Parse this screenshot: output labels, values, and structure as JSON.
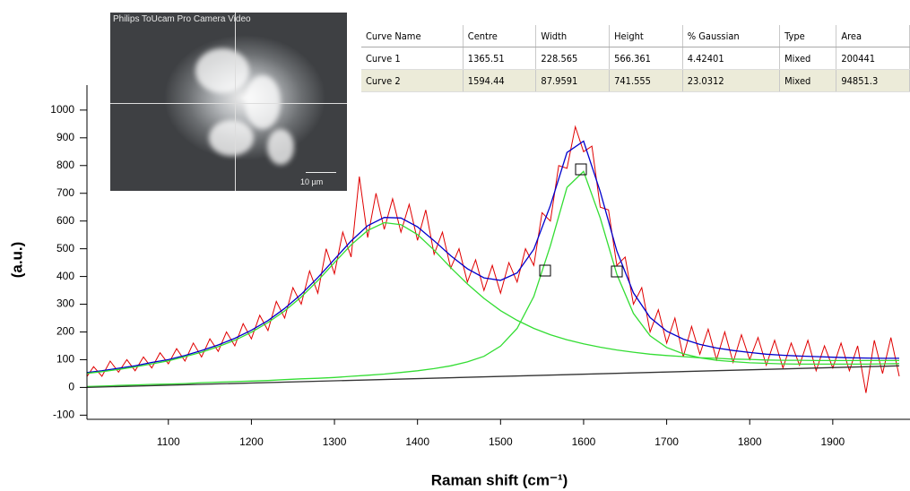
{
  "chart_data": {
    "type": "line",
    "xlabel": "Raman shift (cm⁻¹)",
    "ylabel": "(a.u.)",
    "xlim": [
      1002,
      1993
    ],
    "ylim": [
      -115,
      1090
    ],
    "xticks": [
      1100,
      1200,
      1300,
      1400,
      1500,
      1600,
      1700,
      1800,
      1900
    ],
    "yticks": [
      -100,
      0,
      100,
      200,
      300,
      400,
      500,
      600,
      700,
      800,
      900,
      1000
    ],
    "series": [
      {
        "color": "#e00000",
        "x": [
          1000,
          1010,
          1020,
          1030,
          1040,
          1050,
          1060,
          1070,
          1080,
          1090,
          1100,
          1110,
          1120,
          1130,
          1140,
          1150,
          1160,
          1170,
          1180,
          1190,
          1200,
          1210,
          1220,
          1230,
          1240,
          1250,
          1260,
          1270,
          1280,
          1290,
          1300,
          1310,
          1320,
          1330,
          1340,
          1350,
          1360,
          1370,
          1380,
          1390,
          1400,
          1410,
          1420,
          1430,
          1440,
          1450,
          1460,
          1470,
          1480,
          1490,
          1500,
          1510,
          1520,
          1530,
          1540,
          1550,
          1560,
          1570,
          1580,
          1590,
          1600,
          1610,
          1620,
          1630,
          1640,
          1650,
          1660,
          1670,
          1680,
          1690,
          1700,
          1710,
          1720,
          1730,
          1740,
          1750,
          1760,
          1770,
          1780,
          1790,
          1800,
          1810,
          1820,
          1830,
          1840,
          1850,
          1860,
          1870,
          1880,
          1890,
          1900,
          1910,
          1920,
          1930,
          1940,
          1950,
          1960,
          1970,
          1980
        ],
        "values": [
          30,
          75,
          40,
          95,
          55,
          100,
          60,
          110,
          70,
          125,
          85,
          140,
          95,
          160,
          110,
          175,
          130,
          200,
          150,
          230,
          175,
          260,
          205,
          310,
          250,
          360,
          300,
          420,
          340,
          500,
          410,
          560,
          470,
          760,
          540,
          700,
          570,
          680,
          560,
          660,
          530,
          640,
          480,
          560,
          430,
          500,
          380,
          460,
          350,
          440,
          340,
          450,
          380,
          500,
          440,
          630,
          600,
          800,
          790,
          940,
          850,
          870,
          650,
          640,
          440,
          470,
          300,
          360,
          200,
          280,
          160,
          250,
          110,
          220,
          120,
          210,
          100,
          200,
          90,
          190,
          100,
          180,
          80,
          170,
          70,
          160,
          80,
          170,
          60,
          150,
          70,
          160,
          60,
          150,
          -20,
          170,
          50,
          180,
          40
        ]
      },
      {
        "color": "#0000cc",
        "x": [
          1000,
          1020,
          1040,
          1060,
          1080,
          1100,
          1120,
          1140,
          1160,
          1180,
          1200,
          1220,
          1240,
          1260,
          1280,
          1300,
          1320,
          1340,
          1360,
          1380,
          1400,
          1420,
          1440,
          1460,
          1480,
          1500,
          1520,
          1540,
          1560,
          1580,
          1600,
          1620,
          1640,
          1660,
          1680,
          1700,
          1720,
          1740,
          1760,
          1780,
          1800,
          1820,
          1840,
          1860,
          1880,
          1900,
          1920,
          1940,
          1960,
          1980
        ],
        "values": [
          53,
          60,
          69,
          78,
          90,
          100,
          115,
          133,
          153,
          177,
          206,
          241,
          285,
          336,
          396,
          462,
          528,
          583,
          613,
          611,
          579,
          529,
          475,
          428,
          395,
          386,
          413,
          498,
          656,
          847,
          888,
          706,
          492,
          341,
          252,
          203,
          174,
          155,
          142,
          133,
          126,
          120,
          116,
          113,
          111,
          109,
          107,
          106,
          105,
          105
        ]
      },
      {
        "color": "#33dd33",
        "x": [
          1000,
          1020,
          1040,
          1060,
          1080,
          1100,
          1120,
          1140,
          1160,
          1180,
          1200,
          1220,
          1240,
          1260,
          1280,
          1300,
          1320,
          1340,
          1360,
          1380,
          1400,
          1420,
          1440,
          1460,
          1480,
          1500,
          1520,
          1540,
          1560,
          1580,
          1600,
          1620,
          1640,
          1660,
          1680,
          1700,
          1720,
          1740,
          1760,
          1780,
          1800,
          1820,
          1840,
          1860,
          1880,
          1900,
          1920,
          1940,
          1960,
          1980
        ],
        "values": [
          50,
          57,
          65,
          74,
          85,
          96,
          111,
          127,
          147,
          170,
          199,
          234,
          276,
          326,
          385,
          450,
          514,
          566,
          594,
          587,
          551,
          495,
          432,
          373,
          321,
          277,
          242,
          213,
          190,
          172,
          157,
          145,
          135,
          127,
          120,
          115,
          111,
          107,
          105,
          102,
          101,
          99,
          98,
          98,
          97,
          97,
          97,
          97,
          97,
          97
        ]
      },
      {
        "color": "#33dd33",
        "x": [
          1000,
          1020,
          1040,
          1060,
          1080,
          1100,
          1120,
          1140,
          1160,
          1180,
          1200,
          1220,
          1240,
          1260,
          1280,
          1300,
          1320,
          1340,
          1360,
          1380,
          1400,
          1420,
          1440,
          1460,
          1480,
          1500,
          1520,
          1540,
          1560,
          1580,
          1600,
          1620,
          1640,
          1660,
          1680,
          1700,
          1720,
          1740,
          1760,
          1780,
          1800,
          1820,
          1840,
          1860,
          1880,
          1900,
          1920,
          1940,
          1960,
          1980
        ],
        "values": [
          3,
          5,
          7,
          9,
          11,
          12,
          14,
          17,
          19,
          21,
          23,
          25,
          28,
          31,
          33,
          36,
          40,
          44,
          48,
          54,
          60,
          68,
          78,
          92,
          112,
          149,
          213,
          328,
          511,
          721,
          779,
          611,
          408,
          267,
          186,
          144,
          121,
          107,
          98,
          93,
          89,
          87,
          85,
          84,
          84,
          84,
          84,
          84,
          85,
          86
        ]
      },
      {
        "color": "#333333",
        "x": [
          1000,
          1980
        ],
        "values": [
          0,
          78
        ]
      }
    ]
  },
  "inset": {
    "caption": "Philips ToUcam Pro Camera Video",
    "scale": "10 µm"
  },
  "table": {
    "columns": [
      "Curve Name",
      "Centre",
      "Width",
      "Height",
      "% Gaussian",
      "Type",
      "Area"
    ],
    "rows": [
      [
        "Curve 1",
        "1365.51",
        "228.565",
        "566.361",
        "4.42401",
        "Mixed",
        "200441"
      ],
      [
        "Curve 2",
        "1594.44",
        "87.9591",
        "741.555",
        "23.0312",
        "Mixed",
        "94851.3"
      ]
    ]
  }
}
